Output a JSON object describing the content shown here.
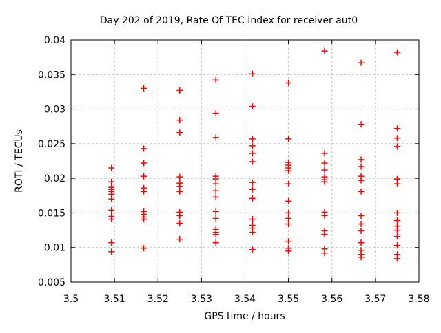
{
  "chart_data": {
    "type": "scatter",
    "title": "Day 202 of 2019, Rate Of TEC Index for receiver aut0",
    "xlabel": "GPS time / hours",
    "ylabel": "ROTI / TECUs",
    "xlim": [
      3.5,
      3.58
    ],
    "ylim": [
      0.005,
      0.04
    ],
    "x_ticks": [
      3.5,
      3.51,
      3.52,
      3.53,
      3.54,
      3.55,
      3.56,
      3.57,
      3.58
    ],
    "x_tick_labels": [
      "3.5",
      "3.51",
      "3.52",
      "3.53",
      "3.54",
      "3.55",
      "3.56",
      "3.57",
      "3.58"
    ],
    "y_ticks": [
      0.005,
      0.01,
      0.015,
      0.02,
      0.025,
      0.03,
      0.035,
      0.04
    ],
    "y_tick_labels": [
      "0.005",
      "0.01",
      "0.015",
      "0.02",
      "0.025",
      "0.03",
      "0.035",
      "0.04"
    ],
    "grid": true,
    "legend": "none",
    "marker": "plus",
    "marker_color": "#ff0000",
    "grid_color": "#bcbcbc",
    "frame_color": "#000000",
    "background": "#ffffff",
    "series": [
      {
        "name": "ROTI",
        "columns": [
          {
            "t": 3.5093,
            "roti": [
              0.0215,
              0.0195,
              0.0187,
              0.0184,
              0.0181,
              0.0177,
              0.017,
              0.0154,
              0.0145,
              0.0141,
              0.0107,
              0.0094
            ]
          },
          {
            "t": 3.5167,
            "roti": [
              0.033,
              0.0243,
              0.0222,
              0.0203,
              0.0186,
              0.0181,
              0.0152,
              0.0148,
              0.0144,
              0.0141,
              0.0099
            ]
          },
          {
            "t": 3.525,
            "roti": [
              0.0327,
              0.0284,
              0.0266,
              0.0202,
              0.0193,
              0.0188,
              0.0181,
              0.0151,
              0.0146,
              0.0135,
              0.0112
            ]
          },
          {
            "t": 3.5333,
            "roti": [
              0.0342,
              0.0294,
              0.0259,
              0.0203,
              0.0199,
              0.0192,
              0.0182,
              0.0173,
              0.0152,
              0.0142,
              0.0126,
              0.0122,
              0.0119,
              0.0107
            ]
          },
          {
            "t": 3.5417,
            "roti": [
              0.0351,
              0.0304,
              0.0257,
              0.0247,
              0.0236,
              0.0224,
              0.0194,
              0.0184,
              0.0171,
              0.0141,
              0.0132,
              0.0128,
              0.0122,
              0.0097
            ]
          },
          {
            "t": 3.55,
            "roti": [
              0.0338,
              0.0257,
              0.0223,
              0.0219,
              0.0215,
              0.0211,
              0.0192,
              0.0167,
              0.015,
              0.0142,
              0.0134,
              0.0109,
              0.0099,
              0.0095
            ]
          },
          {
            "t": 3.5583,
            "roti": [
              0.0384,
              0.0236,
              0.0222,
              0.0212,
              0.0202,
              0.0198,
              0.0195,
              0.0151,
              0.0146,
              0.0124,
              0.0119,
              0.0098,
              0.0092
            ]
          },
          {
            "t": 3.5667,
            "roti": [
              0.0367,
              0.0278,
              0.0227,
              0.0217,
              0.0203,
              0.0197,
              0.0181,
              0.0146,
              0.0134,
              0.0124,
              0.0107,
              0.0096,
              0.009,
              0.0086
            ]
          },
          {
            "t": 3.575,
            "roti": [
              0.0382,
              0.0272,
              0.0258,
              0.0246,
              0.0199,
              0.0192,
              0.015,
              0.0139,
              0.0131,
              0.0125,
              0.0116,
              0.0103,
              0.009,
              0.0084
            ]
          }
        ]
      }
    ]
  }
}
